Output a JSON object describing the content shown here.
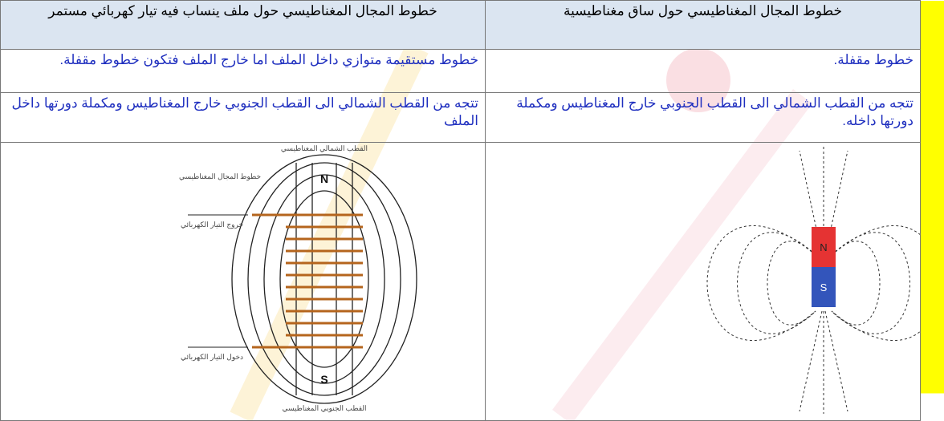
{
  "table": {
    "header": [
      "خطوط المجال المغناطيسي حول ساق مغناطيسية",
      "خطوط المجال المغناطيسي حول ملف ينساب فيه تيار كهربائي مستمر"
    ],
    "rows": [
      [
        "خطوط مقفلة.",
        "خطوط مستقيمة متوازي داخل الملف اما خارج الملف فتكون خطوط مقفلة."
      ],
      [
        "تتجه من القطب الشمالي الى القطب الجنوبي خارج المغناطيس ومكملة دورتها داخله.",
        "تتجه من القطب الشمالي الى القطب الجنوبي خارج المغناطيس ومكملة دورتها داخل الملف"
      ]
    ]
  },
  "figures": {
    "magnet": {
      "north": "N",
      "south": "S"
    },
    "coil": {
      "top": "القطب الشمالي المغناطيسي",
      "north": "N",
      "field_lines": "خطوط المجال المغناطيسي",
      "current_out": "خروج التيار الكهربائي",
      "current_in": "دخول التيار الكهربائي",
      "south": "S",
      "bottom": "القطب الجنوبي المغناطيسي"
    }
  }
}
